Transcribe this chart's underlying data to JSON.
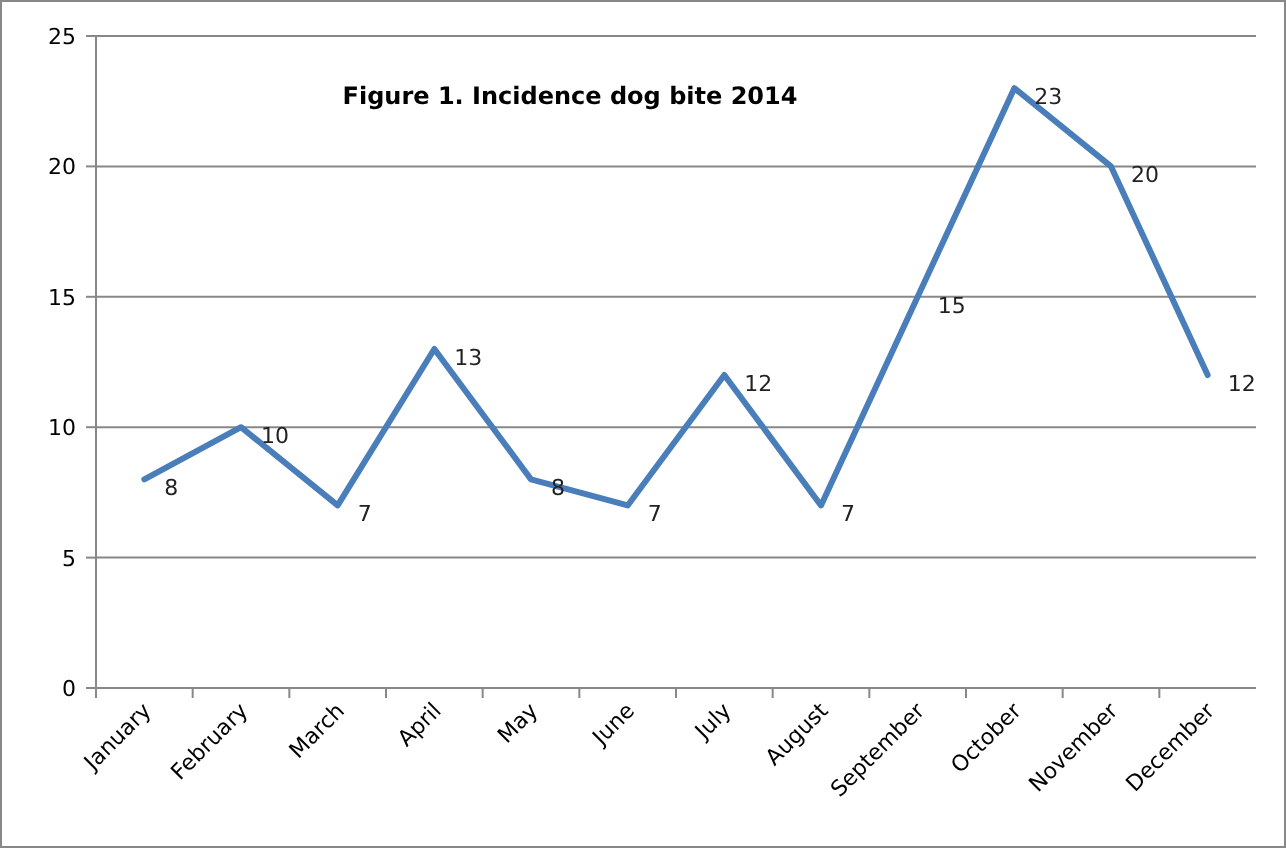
{
  "chart_data": {
    "type": "line",
    "title": "Figure 1. Incidence dog bite 2014",
    "categories": [
      "January",
      "February",
      "March",
      "April",
      "May",
      "June",
      "July",
      "August",
      "September",
      "October",
      "November",
      "December"
    ],
    "series": [
      {
        "color": "#4a7ebb",
        "values": [
          8,
          10,
          7,
          13,
          8,
          7,
          12,
          7,
          15,
          23,
          20,
          12
        ]
      }
    ],
    "ylim": [
      0,
      25
    ],
    "yticks": [
      0,
      5,
      10,
      15,
      20,
      25
    ],
    "grid": "y",
    "data_labels": true,
    "marker": "none",
    "line_style": "solid"
  }
}
